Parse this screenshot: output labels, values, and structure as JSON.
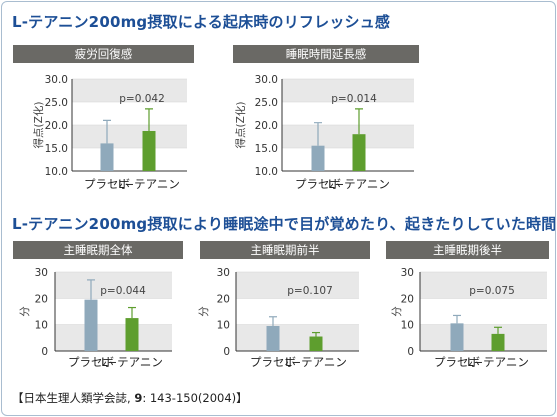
{
  "titles": {
    "top": "L-テアニン200mg摂取による起床時のリフレッシュ感",
    "bottom": "L-テアニン200mg摂取により睡眠途中で目が覚めたり、起きたりしていた時間"
  },
  "citation": {
    "pre": "【日本生理人類学会誌, ",
    "volume": "9",
    "post": ": 143-150(2004)】"
  },
  "colors": {
    "placebo": "#8fa9bb",
    "theanine": "#5e9e2e",
    "band": "#e8e8e8",
    "header": "#6a6965",
    "title": "#1d4f96"
  },
  "chart_data": [
    {
      "type": "bar",
      "title": "疲労回復感",
      "ylabel": "得点(Z化)",
      "categories": [
        "プラセボ",
        "L−テアニン"
      ],
      "values": [
        16.0,
        18.7
      ],
      "errors": [
        5.0,
        4.8
      ],
      "ylim": [
        10,
        30
      ],
      "yticks": [
        "10.0",
        "15.0",
        "20.0",
        "25.0",
        "30.0"
      ],
      "annotation": "p=0.042"
    },
    {
      "type": "bar",
      "title": "睡眠時間延長感",
      "ylabel": "得点(Z化)",
      "categories": [
        "プラセボ",
        "L−テアニン"
      ],
      "values": [
        15.5,
        18.0
      ],
      "errors": [
        5.0,
        5.5
      ],
      "ylim": [
        10,
        30
      ],
      "yticks": [
        "10.0",
        "15.0",
        "20.0",
        "25.0",
        "30.0"
      ],
      "annotation": "p=0.014"
    },
    {
      "type": "bar",
      "title": "主睡眠期全体",
      "ylabel": "分",
      "categories": [
        "プラセボ",
        "L−テアニン"
      ],
      "values": [
        19.5,
        12.5
      ],
      "errors": [
        7.5,
        4.0
      ],
      "ylim": [
        0,
        30
      ],
      "yticks": [
        "0",
        "10",
        "20",
        "30"
      ],
      "annotation": "p=0.044"
    },
    {
      "type": "bar",
      "title": "主睡眠期前半",
      "ylabel": "分",
      "categories": [
        "プラセボ",
        "L−テアニン"
      ],
      "values": [
        9.5,
        5.5
      ],
      "errors": [
        3.5,
        1.5
      ],
      "ylim": [
        0,
        30
      ],
      "yticks": [
        "0",
        "10",
        "20",
        "30"
      ],
      "annotation": "p=0.107"
    },
    {
      "type": "bar",
      "title": "主睡眠期後半",
      "ylabel": "分",
      "categories": [
        "プラセボ",
        "L−テアニン"
      ],
      "values": [
        10.5,
        6.5
      ],
      "errors": [
        3.0,
        2.5
      ],
      "ylim": [
        0,
        30
      ],
      "yticks": [
        "0",
        "10",
        "20",
        "30"
      ],
      "annotation": "p=0.075"
    }
  ]
}
